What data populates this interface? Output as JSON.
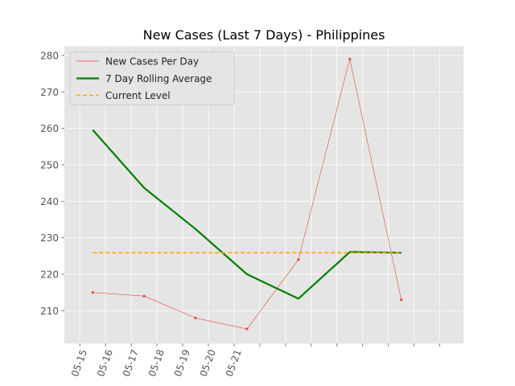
{
  "chart_data": {
    "type": "line",
    "title": "New Cases (Last 7 Days) - Philippines",
    "xlabel": "",
    "ylabel": "",
    "x_tick_labels": [
      "05-15",
      "05-16",
      "05-17",
      "05-18",
      "05-19",
      "05-20",
      "05-21"
    ],
    "ylim": [
      201,
      282.5
    ],
    "y_ticks": [
      210,
      220,
      230,
      240,
      250,
      260,
      270,
      280
    ],
    "grid": true,
    "legend_position": "top-left",
    "series": [
      {
        "name": "New Cases Per Day",
        "style": "thin-line-markers",
        "color": "#e24a33",
        "points": [
          {
            "x": "2020-05-15",
            "y": 215
          },
          {
            "x": "2020-05-16",
            "y": 214
          },
          {
            "x": "2020-05-17",
            "y": 208
          },
          {
            "x": "2020-05-18",
            "y": 205
          },
          {
            "x": "2020-05-19",
            "y": 224
          },
          {
            "x": "2020-05-20",
            "y": 279
          },
          {
            "x": "2020-05-21",
            "y": 213
          }
        ]
      },
      {
        "name": "7 Day Rolling Average",
        "style": "thick-line",
        "color": "#008000",
        "points": [
          {
            "x": "2020-05-15",
            "y": 259.6
          },
          {
            "x": "2020-05-16",
            "y": 243.7
          },
          {
            "x": "2020-05-17",
            "y": 232.4
          },
          {
            "x": "2020-05-18",
            "y": 220.0
          },
          {
            "x": "2020-05-19",
            "y": 213.3
          },
          {
            "x": "2020-05-20",
            "y": 226.1
          },
          {
            "x": "2020-05-21",
            "y": 225.9
          }
        ]
      },
      {
        "name": "Current Level",
        "style": "dashed",
        "color": "#ffa500",
        "points": [
          {
            "x": "2020-05-15",
            "y": 225.9
          },
          {
            "x": "2020-05-21",
            "y": 225.9
          }
        ]
      }
    ]
  },
  "colors": {
    "plot_background": "#e5e5e5",
    "grid": "#ffffff",
    "tick_label": "#555555"
  }
}
